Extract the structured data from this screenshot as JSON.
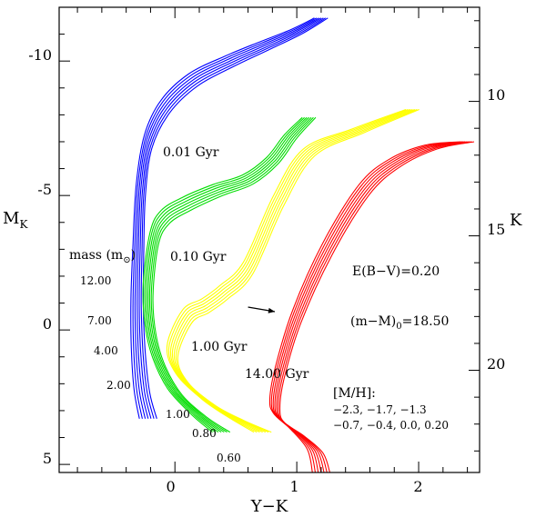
{
  "chart_data": {
    "type": "line",
    "xlabel": "Y−K",
    "ylabel": "M",
    "ylabel_sub": "K",
    "right_ylabel": "K",
    "xlim": [
      -0.95,
      2.5
    ],
    "ylim": [
      -12.0,
      5.3
    ],
    "y_reversed": true,
    "right_ylim": [
      6.5,
      23.8
    ],
    "x_ticks": [
      0,
      1,
      2
    ],
    "y_ticks": [
      -10,
      -5,
      0,
      5
    ],
    "right_ticks": [
      10,
      15,
      20
    ],
    "grid": false,
    "annotations": {
      "mass_header": "mass (m",
      "mass_sub": "⊙",
      "mass_close": ")",
      "masses": [
        "12.00",
        "7.00",
        "4.00",
        "2.00",
        "1.00",
        "0.80",
        "0.60"
      ],
      "ages": [
        "0.01 Gyr",
        "0.10 Gyr",
        "1.00 Gyr",
        "14.00 Gyr"
      ],
      "reddening": "E(B−V)=0.20",
      "distance": "(m−M)",
      "distance_sub": "0",
      "distance_value": "=18.50",
      "metallicity_title": "[M/H]:",
      "metallicity_line1": "−2.3, −1.7, −1.3",
      "metallicity_line2": "−0.7, −0.4, 0.0, 0.20"
    },
    "reddening_vector": {
      "x": [
        0.6,
        0.82
      ],
      "y": [
        -0.85,
        -0.68
      ]
    },
    "series": [
      {
        "age": "0.01 Gyr",
        "color": "#0000ff",
        "count": 7,
        "x": [
          1.2,
          1.0,
          0.75,
          0.45,
          0.15,
          -0.08,
          -0.22,
          -0.28,
          -0.3,
          -0.31,
          -0.3,
          -0.27,
          -0.22
        ],
        "y": [
          -11.6,
          -11.1,
          -10.6,
          -10.0,
          -9.3,
          -8.3,
          -7.0,
          -5.2,
          -3.0,
          -1.0,
          0.8,
          2.3,
          3.3
        ]
      },
      {
        "age": "0.10 Gyr",
        "color": "#00dd00",
        "count": 7,
        "x": [
          1.1,
          0.95,
          0.8,
          0.6,
          0.35,
          0.1,
          -0.08,
          -0.17,
          -0.22,
          -0.2,
          -0.13,
          0.0,
          0.2,
          0.38
        ],
        "y": [
          -7.9,
          -7.2,
          -6.3,
          -5.6,
          -5.2,
          -4.7,
          -4.2,
          -3.4,
          -1.5,
          0.0,
          1.2,
          2.3,
          3.2,
          3.8
        ]
      },
      {
        "age": "1.00 Gyr",
        "color": "#ffff00",
        "count": 7,
        "x": [
          1.95,
          1.5,
          1.1,
          0.85,
          0.6,
          0.4,
          0.25,
          0.1,
          -0.02,
          0.06,
          0.28,
          0.5,
          0.72
        ],
        "y": [
          -8.2,
          -7.4,
          -6.6,
          -4.8,
          -2.3,
          -1.4,
          -0.9,
          -0.5,
          0.8,
          1.8,
          2.7,
          3.3,
          3.8
        ]
      },
      {
        "age": "14.00 Gyr",
        "color": "#ff0000",
        "count": 7,
        "x": [
          2.4,
          2.1,
          1.8,
          1.55,
          1.25,
          1.0,
          0.86,
          0.82,
          0.86,
          1.0,
          1.15,
          1.2
        ],
        "y": [
          -7.0,
          -6.8,
          -6.2,
          -5.2,
          -3.0,
          -0.5,
          1.6,
          2.8,
          3.3,
          3.8,
          4.5,
          5.3
        ]
      }
    ]
  }
}
